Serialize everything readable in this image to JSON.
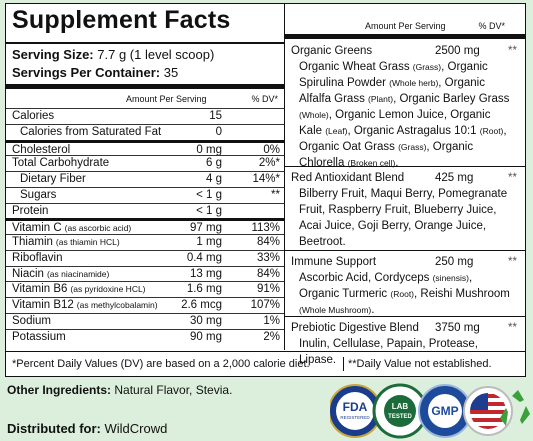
{
  "header": {
    "title": "Supplement Facts",
    "serving_size_label": "Serving Size:",
    "serving_size": "7.7 g (1 level scoop)",
    "servings_label": "Servings Per Container:",
    "servings": "35"
  },
  "table": {
    "columns": [
      "Amount Per Serving",
      "% DV*"
    ],
    "sections": [
      [
        {
          "name": "Calories",
          "amount": "15"
        },
        {
          "name": "Calories from Saturated Fat",
          "amount": "0",
          "indent": true
        }
      ],
      [
        {
          "name": "Cholesterol",
          "amount": "0 mg",
          "dv": "0%"
        },
        {
          "name": "Total Carbohydrate",
          "amount": "6 g",
          "dv": "2%*"
        },
        {
          "name": "Dietary Fiber",
          "amount": "4 g",
          "dv": "14%*",
          "indent": true
        },
        {
          "name": "Sugars",
          "amount": "< 1 g",
          "dv": "**",
          "indent": true
        },
        {
          "name": "Protein",
          "amount": "< 1 g"
        }
      ],
      [
        {
          "name": "Vitamin C",
          "note": "(as ascorbic acid)",
          "amount": "97 mg",
          "dv": "113%"
        },
        {
          "name": "Thiamin",
          "note": "(as thiamin HCL)",
          "amount": "1 mg",
          "dv": "84%"
        },
        {
          "name": "Riboflavin",
          "amount": "0.4 mg",
          "dv": "33%"
        },
        {
          "name": "Niacin",
          "note": "(as niacinamide)",
          "amount": "13 mg",
          "dv": "84%"
        },
        {
          "name": "Vitamin B6",
          "note": "(as pyridoxine HCL)",
          "amount": "1.6 mg",
          "dv": "91%"
        },
        {
          "name": "Vitamin B12",
          "note": "(as methylcobalamin)",
          "amount": "2.6 mcg",
          "dv": "107%"
        },
        {
          "name": "Sodium",
          "amount": "30 mg",
          "dv": "1%"
        },
        {
          "name": "Potassium",
          "amount": "90 mg",
          "dv": "2%"
        }
      ]
    ]
  },
  "blends": {
    "columns": [
      "Amount Per Serving",
      "% DV*"
    ],
    "items": [
      {
        "name": "Organic Greens",
        "amount": "2500 mg",
        "dv": "**",
        "ingredients": [
          "Organic Wheat Grass ",
          "(Grass)",
          ", Organic Spirulina Powder ",
          "(Whole herb)",
          ", Organic Alfalfa Grass ",
          "(Plant)",
          ", Organic Barley Grass ",
          "(Whole)",
          ", Organic Lemon Juice, Organic Kale ",
          "(Leaf)",
          ", Organic Astragalus 10:1 ",
          "(Root)",
          ", Organic Oat Grass ",
          "(Grass)",
          ", Organic Chlorella ",
          "(Broken cell)",
          "."
        ]
      },
      {
        "name": "Red Antioxidant Blend",
        "amount": "425 mg",
        "dv": "**",
        "ingredients": [
          "Bilberry Fruit, Maqui Berry, Pomegranate Fruit, Raspberry Fruit, Blueberry Juice, Acai Juice, Goji Berry, Orange Juice, Beetroot."
        ]
      },
      {
        "name": "Immune Support",
        "amount": "250 mg",
        "dv": "**",
        "ingredients": [
          "Ascorbic Acid, Cordyceps ",
          "(sinensis)",
          ", Organic Turmeric ",
          "(Root)",
          ", Reishi Mushroom ",
          "(Whole Mushroom)",
          "."
        ]
      },
      {
        "name": "Prebiotic Digestive Blend",
        "amount": "3750 mg",
        "dv": "**",
        "ingredients": [
          "Inulin, Cellulase, Papain, Protease, Lipase."
        ]
      }
    ]
  },
  "footnotes": [
    "*Percent Daily Values (DV) are based on a 2,000 calorie diet.",
    "**Daily Value not established."
  ],
  "other_ingredients": {
    "label": "Other Ingredients:",
    "text": "Natural Flavor, Stevia."
  },
  "distributed": {
    "label": "Distributed for:",
    "text": "WildCrowd"
  },
  "badges": {
    "fda": "FDA",
    "fda_sub": "REGISTERED",
    "lab": "LAB",
    "lab_sub": "TESTED",
    "gmp": "GMP"
  }
}
